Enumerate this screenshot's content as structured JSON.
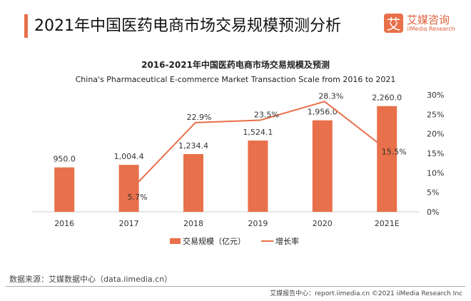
{
  "header": {
    "title": "2021年中国医药电商市场交易规模预测分析",
    "logo_mark": "艾",
    "logo_cn": "艾媒咨询",
    "logo_en": "iiMedia Research"
  },
  "chart_data": {
    "type": "bar+line",
    "title": "2016-2021年中国医药电商市场交易规模及预测",
    "subtitle": "China's Pharmaceutical E-commerce Market Transaction Scale from 2016 to 2021",
    "categories": [
      "2016",
      "2017",
      "2018",
      "2019",
      "2020",
      "2021E"
    ],
    "series": [
      {
        "name": "交易规模（亿元）",
        "type": "bar",
        "axis": "left",
        "values": [
          950.0,
          1004.4,
          1234.4,
          1524.1,
          1956.0,
          2260.0
        ],
        "labels": [
          "950.0",
          "1,004.4",
          "1,234.4",
          "1,524.1",
          "1,956.0",
          "2,260.0"
        ]
      },
      {
        "name": "增长率",
        "type": "line",
        "axis": "right",
        "values": [
          null,
          5.7,
          22.9,
          23.5,
          28.3,
          15.5
        ],
        "labels": [
          "",
          "5.7%",
          "22.9%",
          "23.5%",
          "28.3%",
          "15.5%"
        ]
      }
    ],
    "left_axis": {
      "ylim": [
        0,
        2500
      ],
      "visible": false
    },
    "right_axis": {
      "ylim": [
        0,
        30
      ],
      "ticks": [
        "0%",
        "5%",
        "10%",
        "15%",
        "20%",
        "25%",
        "30%"
      ]
    },
    "grid": false,
    "legend": "bottom",
    "colors": {
      "bar": "#e8704a",
      "line": "#e8704a"
    }
  },
  "footer": {
    "source": "数据来源：艾媒数据中心（data.iimedia.cn）",
    "credit": "艾媒报告中心：report.iimedia.cn  ©2021  iiMedia Research  Inc"
  }
}
